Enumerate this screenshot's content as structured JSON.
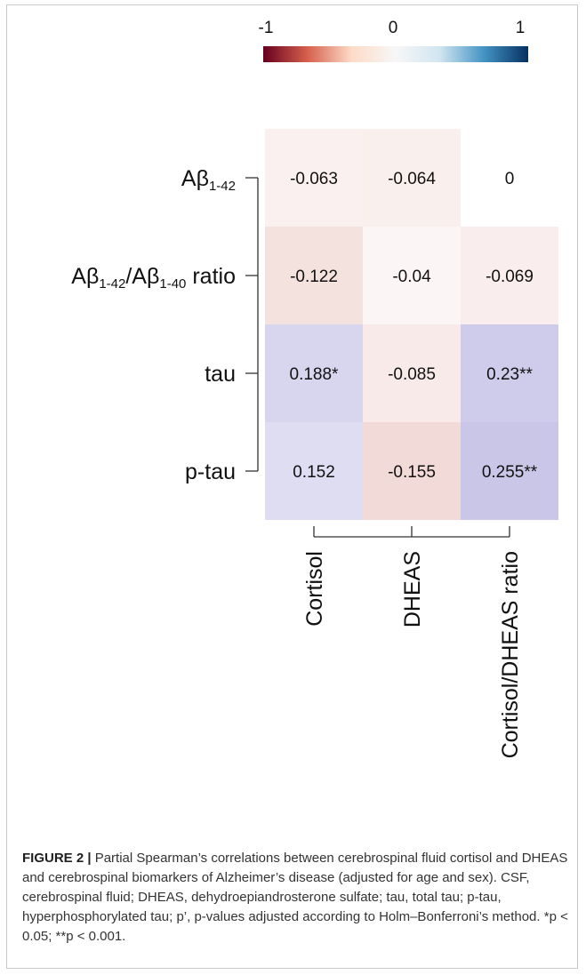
{
  "colorbar": {
    "min_label": "-1",
    "mid_label": "0",
    "max_label": "1",
    "colors": [
      "#67001f",
      "#d6604d",
      "#fddbc7",
      "#f7f7f7",
      "#d1e5f0",
      "#4393c3",
      "#053061"
    ]
  },
  "chart_data": {
    "type": "heatmap",
    "rows": [
      {
        "label": "Aβ",
        "sub": "1-42",
        "suffix": ""
      },
      {
        "label": "Aβ",
        "sub": "1-42",
        "mid": "/Aβ",
        "sub2": "1-40",
        "suffix": " ratio"
      },
      {
        "label": "tau"
      },
      {
        "label": "p-tau"
      }
    ],
    "columns": [
      "Cortisol",
      "DHEAS",
      "Cortisol/DHEAS ratio"
    ],
    "values": [
      [
        -0.063,
        -0.064,
        0
      ],
      [
        -0.122,
        -0.04,
        -0.069
      ],
      [
        0.188,
        -0.085,
        0.23
      ],
      [
        0.152,
        -0.155,
        0.255
      ]
    ],
    "cell_labels": [
      [
        "-0.063",
        "-0.064",
        "0"
      ],
      [
        "-0.122",
        "-0.04",
        "-0.069"
      ],
      [
        "0.188*",
        "-0.085",
        "0.23**"
      ],
      [
        "0.152",
        "-0.155",
        "0.255**"
      ]
    ],
    "color_range": [
      -1,
      1
    ]
  },
  "caption": {
    "lead": "FIGURE 2 |",
    "text": " Partial Spearman’s correlations between cerebrospinal fluid cortisol and DHEAS and cerebrospinal biomarkers of Alzheimer’s disease (adjusted for age and sex). CSF, cerebrospinal fluid; DHEAS, dehydroepiandrosterone sulfate; tau, total tau; p-tau, hyperphosphorylated tau; p’, p-values adjusted according to Holm–Bonferroni’s method. *p < 0.05; **p < 0.001."
  }
}
